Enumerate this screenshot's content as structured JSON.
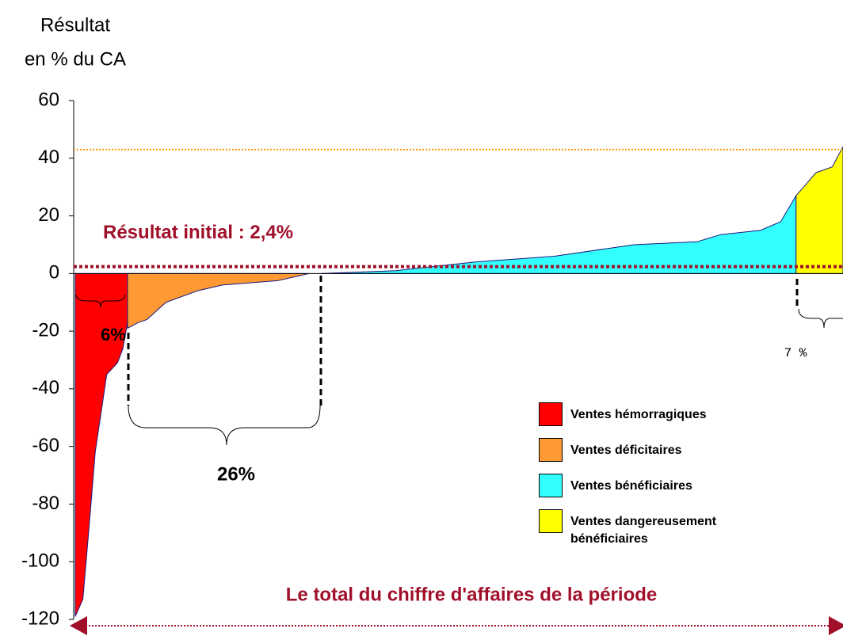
{
  "chart_data": {
    "type": "area",
    "y_label": [
      "Résultat",
      "en % du CA"
    ],
    "ylim": [
      -120,
      60
    ],
    "yticks": [
      -120,
      -100,
      -80,
      -60,
      -40,
      -20,
      0,
      20,
      40,
      60
    ],
    "xlim": [
      0,
      100
    ],
    "series": [
      {
        "name": "Ventes hémorragiques",
        "color": "#ff0000",
        "x": [
          0.2,
          1.2,
          2.0,
          2.8,
          4.3,
          5.7,
          6.4,
          7.0
        ],
        "values": [
          -119,
          -113,
          -88,
          -62,
          -35,
          -31,
          -26,
          -17
        ]
      },
      {
        "name": "Ventes déficitaires",
        "color": "#ff9933",
        "x": [
          7.0,
          8.4,
          9.5,
          12.0,
          16.1,
          19.3,
          26.5,
          30.6
        ],
        "values": [
          -19,
          -17,
          -16,
          -10,
          -6,
          -4,
          -2.5,
          0
        ]
      },
      {
        "name": "Ventes bénéficiaires",
        "color": "#33ffff",
        "x": [
          32.1,
          41.9,
          52.2,
          62.5,
          72.8,
          81.0,
          84.1,
          89.3,
          91.9,
          93.9
        ],
        "values": [
          0,
          1,
          4,
          6,
          10,
          11,
          13.5,
          15,
          18,
          27
        ]
      },
      {
        "name": "Ventes dangereusement bénéficiaires",
        "color": "#ffff00",
        "x": [
          93.9,
          96.5,
          98.6,
          100
        ],
        "values": [
          27,
          35,
          37,
          44
        ]
      }
    ],
    "reference_lines": [
      {
        "value": 2.4,
        "label": "Résultat initial : 2,4%",
        "color": "#a0102a"
      },
      {
        "value": 43,
        "color": "#ff9900"
      }
    ],
    "annotations": [
      "6%",
      "26%",
      "7 %",
      "Le total du chiffre d'affaires de la période"
    ]
  }
}
